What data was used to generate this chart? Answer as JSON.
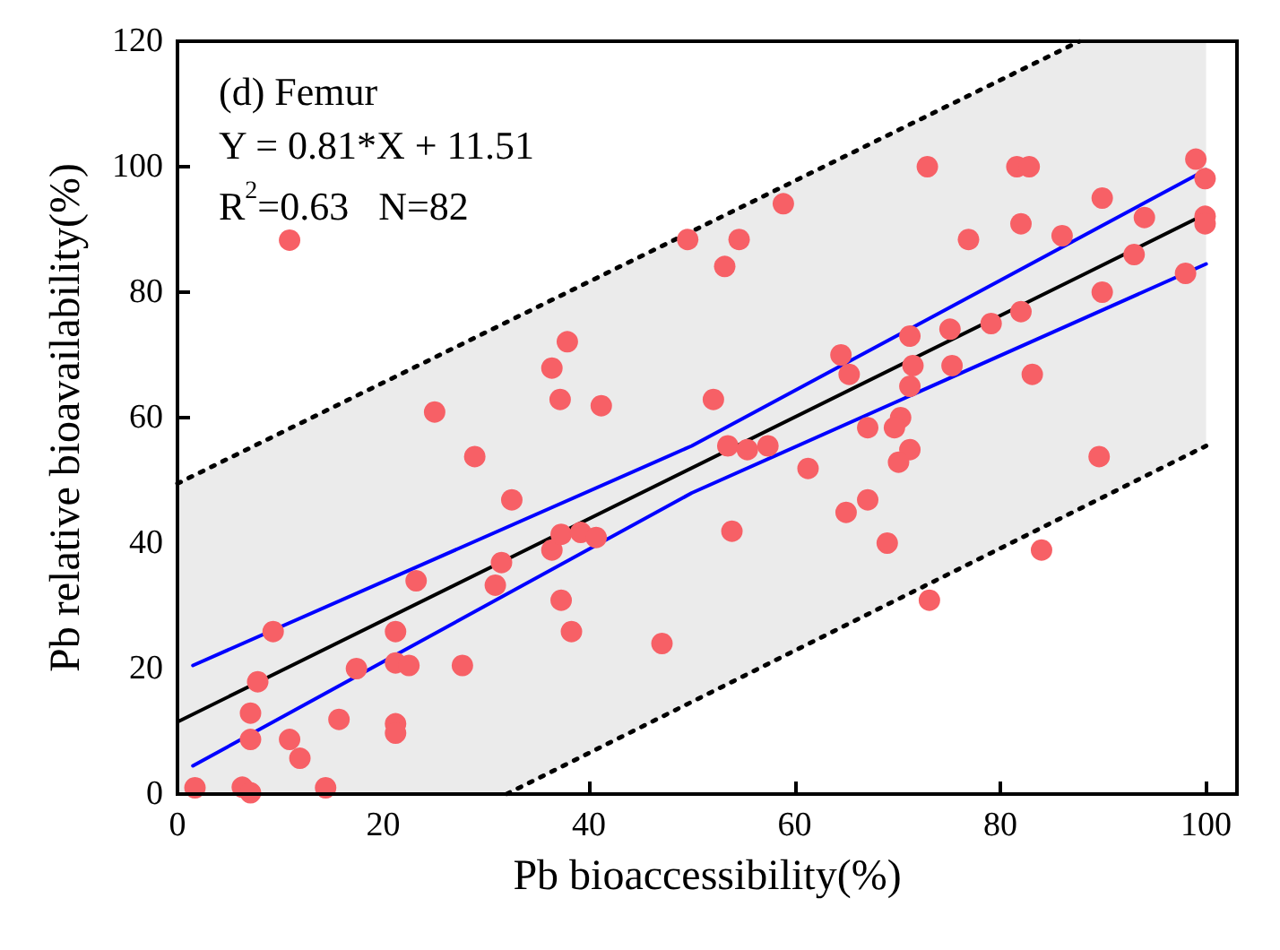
{
  "chart_data": {
    "type": "scatter",
    "xlabel": "Pb bioaccessibility(%)",
    "ylabel": "Pb relative bioavailability(%)",
    "annotations": [
      "(d) Femur",
      "Y = 0.81*X + 11.51",
      "R$^{2}$=0.63   N=82"
    ],
    "xlim": [
      0,
      103
    ],
    "ylim": [
      0,
      120
    ],
    "xticks": [
      0,
      20,
      40,
      60,
      80,
      100
    ],
    "yticks": [
      0,
      20,
      40,
      60,
      80,
      100,
      120
    ],
    "series": [
      {
        "type": "line",
        "color": "#000000",
        "marker": "none",
        "line_style": "solid",
        "x": [
          0,
          32,
          87.7,
          100
        ],
        "values": [
          11.5,
          37.4,
          82.5,
          92.5
        ],
        "lower": [
          0,
          0,
          45.1,
          55.5
        ],
        "upper": [
          49.5,
          75.4,
          120,
          120
        ]
      },
      {
        "type": "line",
        "color": "#000000",
        "marker": "none",
        "line_style": "dotted",
        "x": [
          0,
          87.7
        ],
        "values": [
          49.5,
          120
        ]
      },
      {
        "type": "line",
        "color": "#000000",
        "marker": "none",
        "line_style": "dotted",
        "x": [
          32,
          100
        ],
        "values": [
          0,
          55.5
        ]
      },
      {
        "type": "line",
        "color": "#0000ff",
        "marker": "none",
        "line_style": "solid",
        "x": [
          1.5,
          50,
          100
        ],
        "values": [
          20.5,
          55.5,
          99.5
        ]
      },
      {
        "type": "line",
        "color": "#0000ff",
        "marker": "none",
        "line_style": "solid",
        "x": [
          1.5,
          50,
          100
        ],
        "values": [
          4.5,
          48,
          84.5
        ]
      },
      {
        "color": "#f76066",
        "marker": "circle",
        "x": [
          1.7,
          6.3,
          7.1,
          14.4,
          11.9,
          7.1,
          10.9,
          7.1,
          15.7,
          21.2,
          21.2,
          7.8,
          17.4,
          21.2,
          22.5,
          27.7,
          9.3,
          21.2,
          23.2,
          30.9,
          31.5,
          32.5,
          28.9,
          25,
          10.9,
          36.4,
          37.3,
          39.2,
          40.7,
          37.3,
          38.3,
          47.1,
          37.2,
          41.2,
          36.4,
          37.9,
          49.6,
          54.6,
          53.2,
          58.9,
          52.1,
          53.5,
          55.4,
          57.4,
          53.9,
          61.3,
          64.5,
          65.3,
          67.1,
          70.3,
          69.7,
          71.2,
          70.1,
          67.1,
          65,
          69,
          73.1,
          71.2,
          71.5,
          71.2,
          75.1,
          75.3,
          72.9,
          76.9,
          79.1,
          82,
          83.1,
          84,
          81.6,
          82.8,
          82,
          86,
          89.9,
          89.9,
          89.6,
          93,
          94,
          98,
          99,
          99.9,
          99.9,
          99.9
        ],
        "values": [
          1,
          1.1,
          0.2,
          1,
          5.7,
          8.7,
          8.7,
          12.9,
          11.9,
          11.2,
          9.7,
          17.9,
          20,
          20.9,
          20.5,
          20.5,
          25.9,
          25.9,
          34,
          33.3,
          36.9,
          46.9,
          53.8,
          60.9,
          88.3,
          38.9,
          41.4,
          41.7,
          40.9,
          30.9,
          25.9,
          24,
          62.9,
          61.9,
          67.9,
          72.1,
          88.4,
          88.4,
          84.1,
          94.1,
          62.9,
          55.5,
          54.9,
          55.5,
          41.9,
          51.9,
          70,
          66.9,
          58.4,
          60,
          58.4,
          54.9,
          52.9,
          46.9,
          44.9,
          40,
          30.9,
          65,
          68.3,
          73,
          74.1,
          68.3,
          100,
          88.4,
          75,
          76.9,
          66.9,
          38.9,
          100,
          100,
          90.9,
          89,
          95,
          80,
          53.8,
          86,
          91.9,
          83,
          101.2,
          98.1,
          92.1,
          90.9
        ]
      }
    ]
  }
}
